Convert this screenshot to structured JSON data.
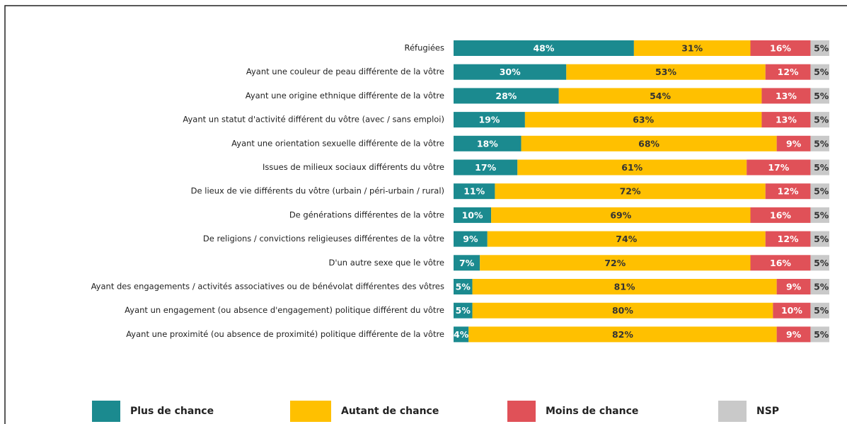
{
  "chart_data": {
    "type": "stacked-bar-horizontal",
    "categories": [
      "Réfugiées",
      "Ayant une couleur de peau différente de la vôtre",
      "Ayant une origine ethnique différente de la vôtre",
      "Ayant un statut d'activité différent du vôtre (avec / sans emploi)",
      "Ayant une orientation sexuelle différente de la vôtre",
      "Issues de milieux sociaux différents du vôtre",
      "De lieux de vie différents du vôtre (urbain / péri-urbain / rural)",
      "De générations différentes de la vôtre",
      "De religions / convictions religieuses différentes de la vôtre",
      "D'un autre sexe que le vôtre",
      "Ayant des engagements / activités associatives ou de bénévolat différentes des vôtres",
      "Ayant un engagement (ou absence d'engagement) politique différent du vôtre",
      "Ayant une proximité (ou absence de proximité) politique différente de la vôtre"
    ],
    "series": [
      {
        "name": "Plus de chance",
        "color": "#1b8a8f",
        "values": [
          48,
          30,
          28,
          19,
          18,
          17,
          11,
          10,
          9,
          7,
          5,
          5,
          4
        ],
        "value_labels": [
          "48%",
          "30%",
          "28%",
          "19%",
          "18%",
          "17%",
          "11%",
          "10%",
          "9%",
          "7%",
          "5%",
          "5%",
          "4%"
        ]
      },
      {
        "name": "Autant de chance",
        "color": "#ffc000",
        "values": [
          31,
          53,
          54,
          63,
          68,
          61,
          72,
          69,
          74,
          72,
          81,
          80,
          82
        ],
        "value_labels": [
          "31%",
          "53%",
          "54%",
          "63%",
          "68%",
          "61%",
          "72%",
          "69%",
          "74%",
          "72%",
          "81%",
          "80%",
          "82%"
        ]
      },
      {
        "name": "Moins de chance",
        "color": "#e05158",
        "values": [
          16,
          12,
          13,
          13,
          9,
          17,
          12,
          16,
          12,
          16,
          9,
          10,
          9
        ],
        "value_labels": [
          "16%",
          "12%",
          "13%",
          "13%",
          "9%",
          "17%",
          "12%",
          "16%",
          "12%",
          "16%",
          "9%",
          "10%",
          "9%"
        ]
      },
      {
        "name": "NSP",
        "color": "#c9c9c9",
        "values": [
          5,
          5,
          5,
          5,
          5,
          5,
          5,
          5,
          5,
          5,
          5,
          5,
          5
        ],
        "value_labels": [
          "5%",
          "5%",
          "5%",
          "5%",
          "5%",
          "5%",
          "5%",
          "5%",
          "5%",
          "5%",
          "5%",
          "5%",
          "5%"
        ]
      }
    ]
  }
}
